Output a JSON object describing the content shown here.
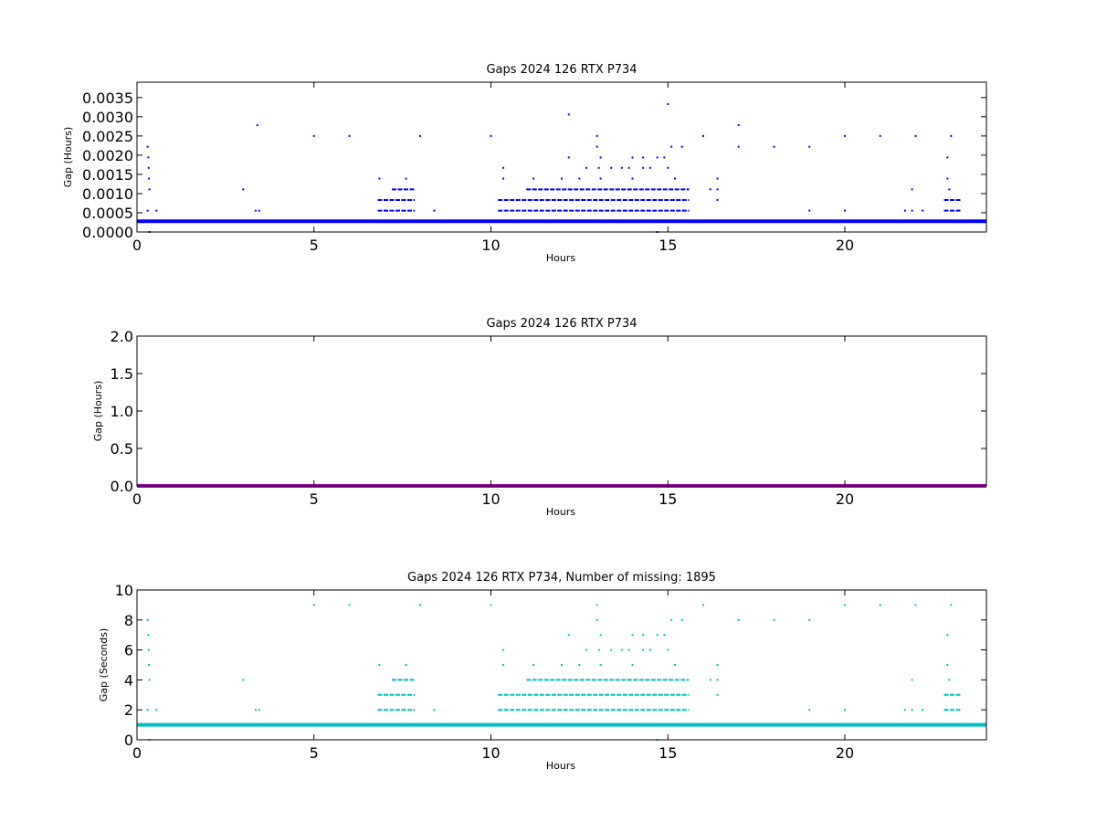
{
  "colors": {
    "panel1": "#0000ff",
    "panel2": "#aa00aa",
    "panel3": "#00bfbf"
  },
  "chart_data": [
    {
      "type": "scatter",
      "title": "Gaps 2024 126 RTX  P734",
      "xlabel": "Hours",
      "ylabel": "Gap (Hours)",
      "xlim": [
        0,
        24
      ],
      "ylim": [
        0,
        0.0039
      ],
      "xticks": [
        "0",
        "5",
        "10",
        "15",
        "20"
      ],
      "yticks": [
        "0.0000",
        "0.0005",
        "0.0010",
        "0.0015",
        "0.0020",
        "0.0025",
        "0.0030",
        "0.0035"
      ],
      "baseline": {
        "value": 0.000278,
        "from": 0,
        "to": 24
      },
      "segments": [
        {
          "y": 0.000556,
          "from": 6.8,
          "to": 7.85
        },
        {
          "y": 0.000833,
          "from": 6.8,
          "to": 7.85
        },
        {
          "y": 0.00111,
          "from": 7.2,
          "to": 7.85
        },
        {
          "y": 0.000556,
          "from": 10.2,
          "to": 15.6
        },
        {
          "y": 0.000833,
          "from": 10.2,
          "to": 15.6
        },
        {
          "y": 0.00111,
          "from": 11.0,
          "to": 15.6
        },
        {
          "y": 0.000556,
          "from": 22.8,
          "to": 23.3
        },
        {
          "y": 0.000833,
          "from": 22.8,
          "to": 23.3
        }
      ],
      "points": [
        [
          0.3,
          0.00222
        ],
        [
          0.32,
          0.00194
        ],
        [
          0.33,
          0.00167
        ],
        [
          0.34,
          0.00139
        ],
        [
          0.35,
          0.00111
        ],
        [
          0.3,
          0.000556
        ],
        [
          0.35,
          0.0
        ],
        [
          0.55,
          0.000556
        ],
        [
          3.0,
          0.00111
        ],
        [
          3.35,
          0.000556
        ],
        [
          3.45,
          0.000556
        ],
        [
          3.4,
          0.00278
        ],
        [
          5.0,
          0.0025
        ],
        [
          6.0,
          0.0025
        ],
        [
          8.0,
          0.0025
        ],
        [
          8.4,
          0.000556
        ],
        [
          10.0,
          0.0025
        ],
        [
          6.85,
          0.00139
        ],
        [
          7.6,
          0.00139
        ],
        [
          10.35,
          0.00167
        ],
        [
          10.35,
          0.00139
        ],
        [
          11.2,
          0.00139
        ],
        [
          12.0,
          0.00139
        ],
        [
          12.2,
          0.00194
        ],
        [
          12.5,
          0.00139
        ],
        [
          12.7,
          0.00167
        ],
        [
          12.2,
          0.00306
        ],
        [
          13.0,
          0.0025
        ],
        [
          13.0,
          0.00222
        ],
        [
          13.1,
          0.00194
        ],
        [
          13.05,
          0.00167
        ],
        [
          13.1,
          0.00139
        ],
        [
          13.4,
          0.00167
        ],
        [
          13.7,
          0.00167
        ],
        [
          13.9,
          0.00167
        ],
        [
          14.0,
          0.00194
        ],
        [
          14.0,
          0.00139
        ],
        [
          14.3,
          0.00194
        ],
        [
          14.3,
          0.00167
        ],
        [
          14.5,
          0.00167
        ],
        [
          14.7,
          0.00194
        ],
        [
          14.9,
          0.00194
        ],
        [
          15.0,
          0.00333
        ],
        [
          15.1,
          0.00222
        ],
        [
          15.0,
          0.00167
        ],
        [
          15.2,
          0.00139
        ],
        [
          15.4,
          0.00222
        ],
        [
          16.0,
          0.0025
        ],
        [
          16.2,
          0.00111
        ],
        [
          16.4,
          0.00139
        ],
        [
          16.4,
          0.00111
        ],
        [
          16.4,
          0.000833
        ],
        [
          14.7,
          0.0
        ],
        [
          17.0,
          0.00278
        ],
        [
          17.0,
          0.00222
        ],
        [
          18.0,
          0.00222
        ],
        [
          19.0,
          0.00222
        ],
        [
          19.0,
          0.000556
        ],
        [
          20.0,
          0.0025
        ],
        [
          20.0,
          0.000556
        ],
        [
          21.0,
          0.0025
        ],
        [
          21.7,
          0.000556
        ],
        [
          21.9,
          0.00111
        ],
        [
          21.9,
          0.000556
        ],
        [
          22.0,
          0.0025
        ],
        [
          22.2,
          0.000556
        ],
        [
          23.0,
          0.0025
        ],
        [
          22.9,
          0.00194
        ],
        [
          22.9,
          0.00139
        ],
        [
          22.95,
          0.00111
        ]
      ]
    },
    {
      "type": "scatter",
      "title": "Gaps 2024 126 RTX  P734",
      "xlabel": "Hours",
      "ylabel": "Gap (Hours)",
      "xlim": [
        0,
        24
      ],
      "ylim": [
        0,
        2.0
      ],
      "xticks": [
        "0",
        "5",
        "10",
        "15",
        "20"
      ],
      "yticks": [
        "0.0",
        "0.5",
        "1.0",
        "1.5",
        "2.0"
      ],
      "baseline": {
        "value": 0.0,
        "from": 0,
        "to": 24
      },
      "segments": [],
      "points": []
    },
    {
      "type": "scatter",
      "title": "Gaps 2024 126 RTX  P734, Number of missing: 1895",
      "xlabel": "Hours",
      "ylabel": "Gap (Seconds)",
      "xlim": [
        0,
        24
      ],
      "ylim": [
        0,
        10
      ],
      "xticks": [
        "0",
        "5",
        "10",
        "15",
        "20"
      ],
      "yticks": [
        "0",
        "2",
        "4",
        "6",
        "8",
        "10"
      ],
      "baseline": {
        "value": 1,
        "from": 0,
        "to": 24
      },
      "segments": [
        {
          "y": 2,
          "from": 6.8,
          "to": 7.85
        },
        {
          "y": 3,
          "from": 6.8,
          "to": 7.85
        },
        {
          "y": 4,
          "from": 7.2,
          "to": 7.85
        },
        {
          "y": 2,
          "from": 10.2,
          "to": 15.6
        },
        {
          "y": 3,
          "from": 10.2,
          "to": 15.6
        },
        {
          "y": 4,
          "from": 11.0,
          "to": 15.6
        },
        {
          "y": 2,
          "from": 22.8,
          "to": 23.3
        },
        {
          "y": 3,
          "from": 22.8,
          "to": 23.3
        }
      ],
      "points": [
        [
          0.3,
          8
        ],
        [
          0.32,
          7
        ],
        [
          0.33,
          6
        ],
        [
          0.34,
          5
        ],
        [
          0.35,
          4
        ],
        [
          0.3,
          2
        ],
        [
          0.35,
          0
        ],
        [
          0.55,
          2
        ],
        [
          3.0,
          4
        ],
        [
          3.35,
          2
        ],
        [
          3.45,
          2
        ],
        [
          5.0,
          9
        ],
        [
          6.0,
          9
        ],
        [
          8.0,
          9
        ],
        [
          8.4,
          2
        ],
        [
          10.0,
          9
        ],
        [
          6.85,
          5
        ],
        [
          7.6,
          5
        ],
        [
          10.35,
          6
        ],
        [
          10.35,
          5
        ],
        [
          11.2,
          5
        ],
        [
          12.0,
          5
        ],
        [
          12.2,
          7
        ],
        [
          12.5,
          5
        ],
        [
          12.7,
          6
        ],
        [
          13.0,
          9
        ],
        [
          13.0,
          8
        ],
        [
          13.1,
          7
        ],
        [
          13.05,
          6
        ],
        [
          13.1,
          5
        ],
        [
          13.4,
          6
        ],
        [
          13.7,
          6
        ],
        [
          13.9,
          6
        ],
        [
          14.0,
          7
        ],
        [
          14.0,
          5
        ],
        [
          14.3,
          7
        ],
        [
          14.3,
          6
        ],
        [
          14.5,
          6
        ],
        [
          14.7,
          7
        ],
        [
          14.9,
          7
        ],
        [
          15.1,
          8
        ],
        [
          15.0,
          6
        ],
        [
          15.2,
          5
        ],
        [
          15.4,
          8
        ],
        [
          16.0,
          9
        ],
        [
          16.2,
          4
        ],
        [
          16.4,
          5
        ],
        [
          16.4,
          4
        ],
        [
          16.4,
          3
        ],
        [
          14.7,
          0
        ],
        [
          17.0,
          8
        ],
        [
          18.0,
          8
        ],
        [
          19.0,
          8
        ],
        [
          19.0,
          2
        ],
        [
          20.0,
          9
        ],
        [
          20.0,
          2
        ],
        [
          21.0,
          9
        ],
        [
          21.7,
          2
        ],
        [
          21.9,
          4
        ],
        [
          21.9,
          2
        ],
        [
          22.0,
          9
        ],
        [
          22.2,
          2
        ],
        [
          23.0,
          9
        ],
        [
          22.9,
          7
        ],
        [
          22.9,
          5
        ],
        [
          22.95,
          4
        ]
      ]
    }
  ]
}
